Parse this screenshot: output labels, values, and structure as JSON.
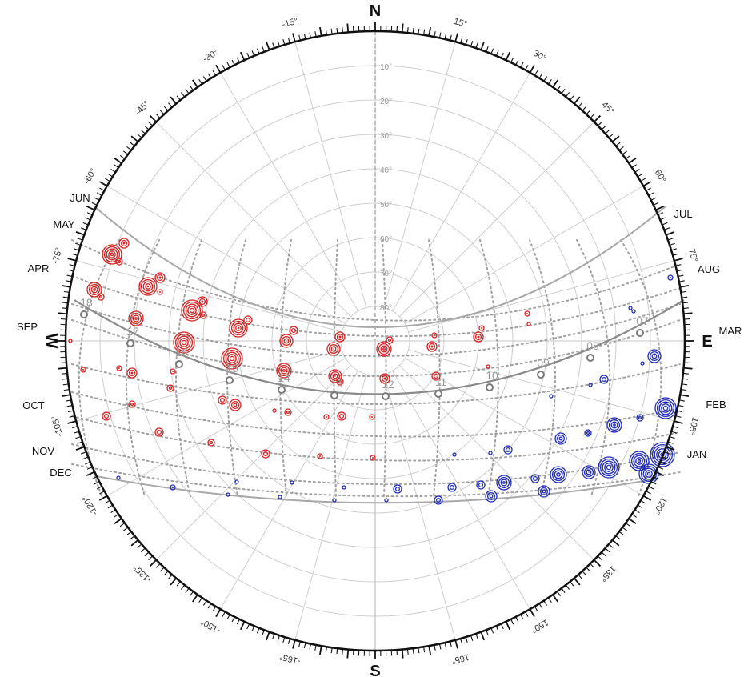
{
  "cardinals": {
    "north": "N",
    "south": "S",
    "east": "E",
    "west": "W"
  },
  "azimuth_labels": [
    {
      "az": 15,
      "text": "15°"
    },
    {
      "az": 30,
      "text": "30°"
    },
    {
      "az": 45,
      "text": "45°"
    },
    {
      "az": 60,
      "text": "60°"
    },
    {
      "az": 75,
      "text": "75°"
    },
    {
      "az": 105,
      "text": "105°"
    },
    {
      "az": 120,
      "text": "120°"
    },
    {
      "az": 135,
      "text": "135°"
    },
    {
      "az": 150,
      "text": "150°"
    },
    {
      "az": 165,
      "text": "165°"
    },
    {
      "az": -15,
      "text": "-15°"
    },
    {
      "az": -30,
      "text": "-30°"
    },
    {
      "az": -45,
      "text": "-45°"
    },
    {
      "az": -60,
      "text": "-60°"
    },
    {
      "az": -75,
      "text": "-75°"
    },
    {
      "az": -105,
      "text": "-105°"
    },
    {
      "az": -120,
      "text": "-120°"
    },
    {
      "az": -135,
      "text": "-135°"
    },
    {
      "az": -150,
      "text": "-150°"
    },
    {
      "az": -165,
      "text": "-165°"
    }
  ],
  "altitude_labels": [
    "10°",
    "20°",
    "30°",
    "40°",
    "50°",
    "60°",
    "70°",
    "80°"
  ],
  "month_labels": {
    "west": [
      "JUN",
      "MAY",
      "APR",
      "SEP",
      "OCT",
      "NOV",
      "DEC"
    ],
    "east": [
      "JUL",
      "AUG",
      "MAR",
      "FEB",
      "JAN"
    ]
  },
  "hour_labels": [
    "07",
    "08",
    "09",
    "10",
    "11",
    "12",
    "13",
    "14",
    "15",
    "16",
    "17",
    "18"
  ],
  "colors": {
    "ring": "#111111",
    "grid": "#cfcfcf",
    "sun_curve": "#a8a8a8",
    "equinox_curve": "#8a8a8a",
    "dotted": "#a0a0a0",
    "warm": "#d42020",
    "cool": "#1f2bb5"
  }
}
